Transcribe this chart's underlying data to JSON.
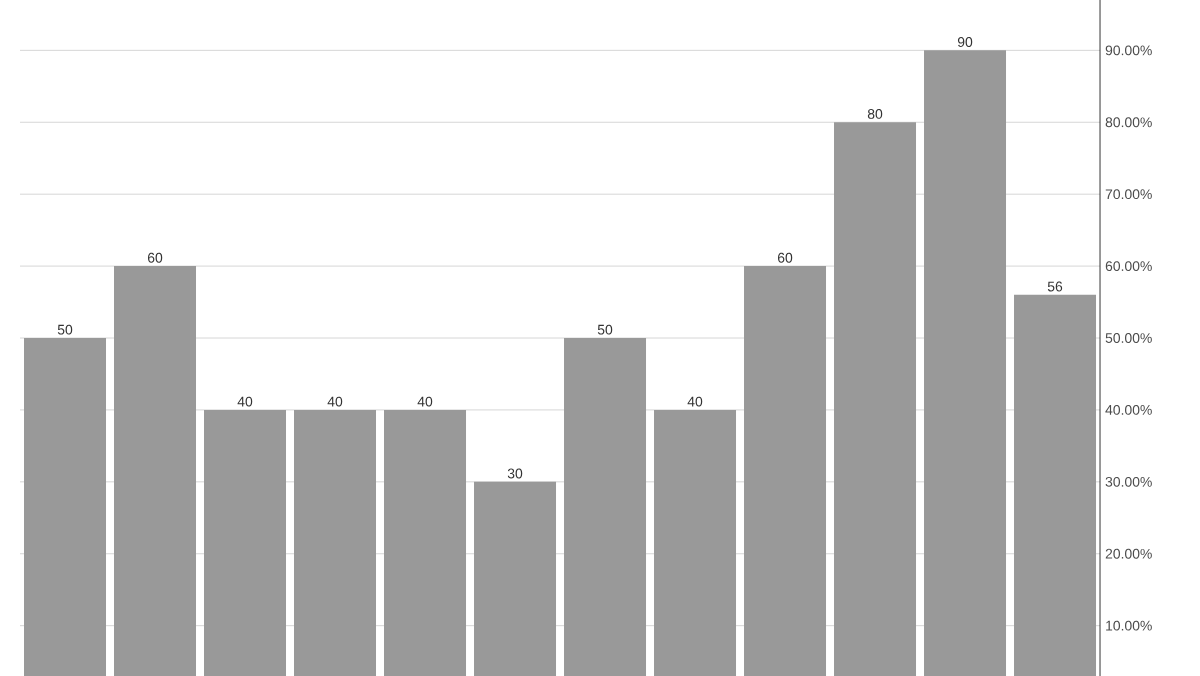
{
  "chart_data": {
    "type": "bar",
    "categories": [
      null,
      null,
      null,
      null,
      null,
      null,
      null,
      null,
      null,
      null,
      null,
      null
    ],
    "values": [
      50,
      60,
      40,
      40,
      40,
      30,
      50,
      40,
      60,
      80,
      90,
      56
    ],
    "color": "#999999",
    "data_labels": true,
    "grid": "y",
    "tick_labels": "y",
    "ylim": [
      3,
      97
    ],
    "yticks": [
      {
        "value": 10,
        "label": "10.00%"
      },
      {
        "value": 20,
        "label": "20.00%"
      },
      {
        "value": 30,
        "label": "30.00%"
      },
      {
        "value": 40,
        "label": "40.00%"
      },
      {
        "value": 50,
        "label": "50.00%"
      },
      {
        "value": 60,
        "label": "60.00%"
      },
      {
        "value": 70,
        "label": "70.00%"
      },
      {
        "value": 80,
        "label": "80.00%"
      },
      {
        "value": 90,
        "label": "90.00%"
      }
    ]
  }
}
